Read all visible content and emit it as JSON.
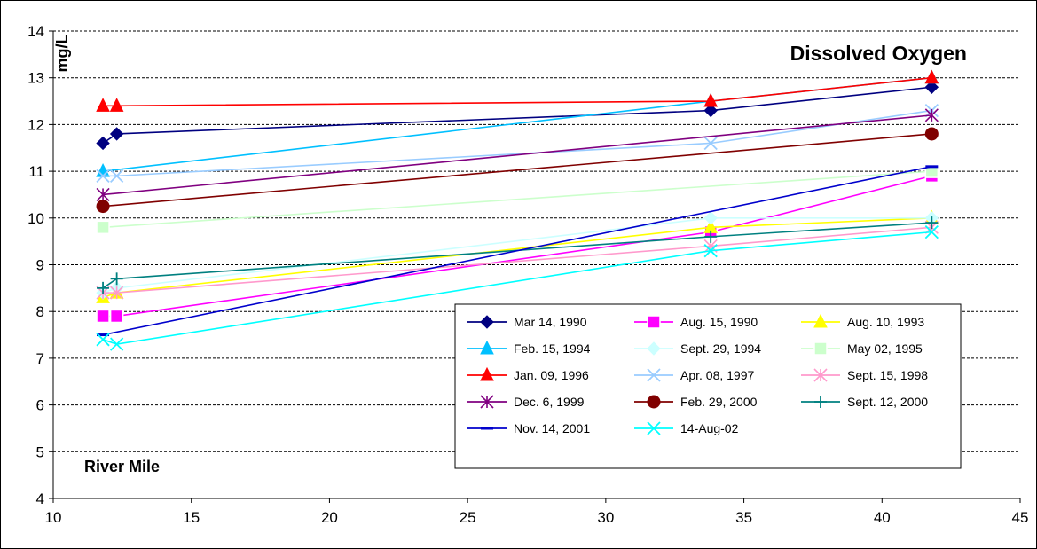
{
  "chart_data": {
    "type": "line",
    "title": "Dissolved Oxygen",
    "xlabel": "River Mile",
    "ylabel": "mg/L",
    "xlim": [
      10,
      45
    ],
    "ylim": [
      4,
      14
    ],
    "x_ticks": [
      10,
      15,
      20,
      25,
      30,
      35,
      40,
      45
    ],
    "y_ticks": [
      4,
      5,
      6,
      7,
      8,
      9,
      10,
      11,
      12,
      13,
      14
    ],
    "grid": "horizontal dashed",
    "legend_position": "center-right inside plot",
    "series": [
      {
        "name": "Mar 14, 1990",
        "color": "#000080",
        "marker": "diamond",
        "x": [
          11.8,
          12.3,
          33.8,
          41.8
        ],
        "y": [
          11.6,
          11.8,
          12.3,
          12.8
        ]
      },
      {
        "name": "Aug. 15, 1990",
        "color": "#ff00ff",
        "marker": "square",
        "x": [
          11.8,
          12.3,
          33.8,
          41.8
        ],
        "y": [
          7.9,
          7.9,
          9.7,
          10.9
        ]
      },
      {
        "name": "Aug. 10, 1993",
        "color": "#ffff00",
        "marker": "triangle",
        "x": [
          11.8,
          12.3,
          33.8,
          41.8
        ],
        "y": [
          8.3,
          8.4,
          9.8,
          10.0
        ]
      },
      {
        "name": "Feb. 15, 1994",
        "color": "#00c0ff",
        "marker": "triangle",
        "x": [
          11.8,
          33.8,
          41.8
        ],
        "y": [
          11.0,
          12.5,
          13.0
        ]
      },
      {
        "name": "Sept. 29, 1994",
        "color": "#ccffff",
        "marker": "diamond",
        "x": [
          11.8,
          12.3,
          33.8,
          41.8
        ],
        "y": [
          8.4,
          8.5,
          10.0,
          10.0
        ]
      },
      {
        "name": "May 02, 1995",
        "color": "#ccffcc",
        "marker": "square",
        "x": [
          11.8,
          41.8
        ],
        "y": [
          9.8,
          11.0
        ]
      },
      {
        "name": "Jan. 09, 1996",
        "color": "#ff0000",
        "marker": "triangle",
        "x": [
          11.8,
          12.3,
          33.8,
          41.8
        ],
        "y": [
          12.4,
          12.4,
          12.5,
          13.0
        ]
      },
      {
        "name": "Apr. 08, 1997",
        "color": "#99ccff",
        "marker": "x",
        "x": [
          11.8,
          12.3,
          33.8,
          41.8
        ],
        "y": [
          10.9,
          10.9,
          11.6,
          12.3
        ]
      },
      {
        "name": "Sept. 15, 1998",
        "color": "#ff99cc",
        "marker": "asterisk",
        "x": [
          11.8,
          12.3,
          33.8,
          41.8
        ],
        "y": [
          8.4,
          8.4,
          9.4,
          9.8
        ]
      },
      {
        "name": "Dec. 6, 1999",
        "color": "#800080",
        "marker": "asterisk",
        "x": [
          11.8,
          41.8
        ],
        "y": [
          10.5,
          12.2
        ]
      },
      {
        "name": "Feb. 29, 2000",
        "color": "#800000",
        "marker": "circle",
        "x": [
          11.8,
          41.8
        ],
        "y": [
          10.25,
          11.8
        ]
      },
      {
        "name": "Sept. 12, 2000",
        "color": "#008080",
        "marker": "plus",
        "x": [
          11.8,
          12.3,
          33.8,
          41.8
        ],
        "y": [
          8.5,
          8.7,
          9.6,
          9.9
        ]
      },
      {
        "name": "Nov. 14, 2001",
        "color": "#0000cc",
        "marker": "dash",
        "x": [
          11.8,
          41.8
        ],
        "y": [
          7.5,
          11.1
        ]
      },
      {
        "name": "14-Aug-02",
        "color": "#00ffff",
        "marker": "x",
        "x": [
          11.8,
          12.3,
          33.8,
          41.8
        ],
        "y": [
          7.4,
          7.3,
          9.3,
          9.7
        ]
      }
    ]
  }
}
